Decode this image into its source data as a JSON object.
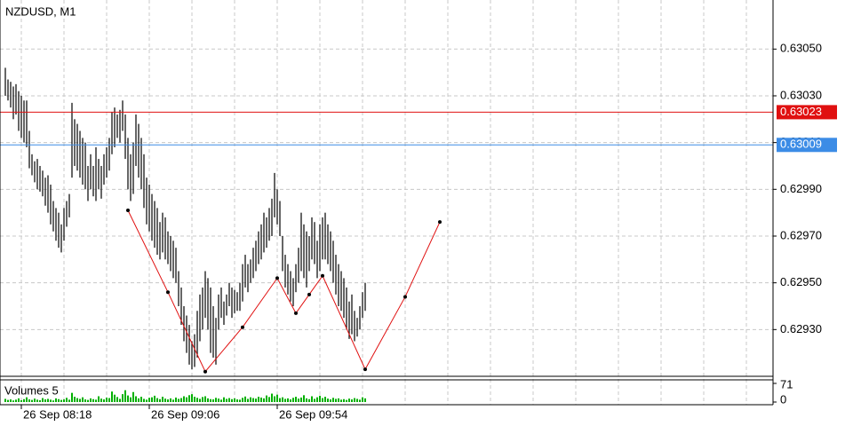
{
  "chart_data": {
    "type": "ohlc",
    "title": "NZDUSD, M1",
    "ylim": [
      0.6291,
      0.63071
    ],
    "yticks": [
      {
        "value": 0.6293,
        "label": "0.62930"
      },
      {
        "value": 0.6295,
        "label": "0.62950"
      },
      {
        "value": 0.6297,
        "label": "0.62970"
      },
      {
        "value": 0.6299,
        "label": "0.62990"
      },
      {
        "value": 0.6301,
        "label": "0.63010"
      },
      {
        "value": 0.6303,
        "label": "0.63030"
      },
      {
        "value": 0.6305,
        "label": "0.63050"
      }
    ],
    "xlim": [
      -2,
      288
    ],
    "xticks": [
      {
        "value": 6,
        "label": "26 Sep 08:18"
      },
      {
        "value": 54,
        "label": "26 Sep 09:06"
      },
      {
        "value": 102,
        "label": "26 Sep 09:54"
      }
    ],
    "xgrid": [
      6,
      22,
      38,
      54,
      70,
      86,
      102,
      118,
      134,
      150,
      166,
      182,
      198,
      214,
      230,
      246,
      262,
      278
    ],
    "grid": true,
    "color": "#000000",
    "high": [
      0.63042,
      0.63037,
      0.63036,
      0.63034,
      0.63035,
      0.63032,
      0.6303,
      0.63028,
      0.63028,
      0.63015,
      0.63005,
      0.63002,
      0.63003,
      0.63,
      0.62998,
      0.62995,
      0.62996,
      0.62992,
      0.62985,
      0.62982,
      0.6298,
      0.62975,
      0.62982,
      0.62985,
      0.62988,
      0.63027,
      0.6302,
      0.63018,
      0.63015,
      0.63012,
      0.6301,
      0.63,
      0.63005,
      0.63,
      0.63008,
      0.63003,
      0.63,
      0.63005,
      0.63008,
      0.63012,
      0.63023,
      0.63025,
      0.63022,
      0.63024,
      0.63028,
      0.63022,
      0.63012,
      0.63005,
      0.6301,
      0.63022,
      0.63018,
      0.63012,
      0.63005,
      0.62995,
      0.62992,
      0.62988,
      0.62985,
      0.62982,
      0.62976,
      0.6298,
      0.62978,
      0.62972,
      0.6297,
      0.62968,
      0.62965,
      0.62955,
      0.62948,
      0.6294,
      0.62936,
      0.62932,
      0.62925,
      0.62928,
      0.62938,
      0.62945,
      0.62948,
      0.62955,
      0.62952,
      0.62948,
      0.6294,
      0.62935,
      0.62945,
      0.62948,
      0.62942,
      0.62945,
      0.6295,
      0.62948,
      0.62947,
      0.62946,
      0.6295,
      0.62958,
      0.62962,
      0.62958,
      0.6296,
      0.62965,
      0.62968,
      0.62972,
      0.62975,
      0.6298,
      0.62978,
      0.62982,
      0.62986,
      0.62997,
      0.6299,
      0.62985,
      0.6297,
      0.62962,
      0.62958,
      0.62955,
      0.62952,
      0.62958,
      0.62965,
      0.6298,
      0.62975,
      0.62972,
      0.6297,
      0.62978,
      0.62976,
      0.62968,
      0.62975,
      0.62978,
      0.6298,
      0.62975,
      0.62972,
      0.62968,
      0.62962,
      0.62958,
      0.62955,
      0.62952,
      0.62948,
      0.62942,
      0.62945,
      0.62938,
      0.62935,
      0.6294,
      0.62946,
      0.6295
    ],
    "low": [
      0.6303,
      0.63028,
      0.63025,
      0.6302,
      0.63022,
      0.63015,
      0.63012,
      0.6301,
      0.63008,
      0.62999,
      0.62996,
      0.62993,
      0.6299,
      0.62989,
      0.62987,
      0.62983,
      0.6298,
      0.62975,
      0.62972,
      0.62968,
      0.62965,
      0.62963,
      0.62968,
      0.62974,
      0.62978,
      0.62995,
      0.63,
      0.62998,
      0.62995,
      0.62992,
      0.6299,
      0.62985,
      0.6299,
      0.62987,
      0.62985,
      0.6299,
      0.62986,
      0.62992,
      0.62995,
      0.62998,
      0.63005,
      0.63008,
      0.63012,
      0.6301,
      0.63015,
      0.63003,
      0.6299,
      0.62985,
      0.62988,
      0.63,
      0.62995,
      0.6299,
      0.62982,
      0.62975,
      0.62972,
      0.62968,
      0.62965,
      0.62962,
      0.6296,
      0.62963,
      0.6296,
      0.62958,
      0.62955,
      0.62952,
      0.6295,
      0.6294,
      0.62932,
      0.62925,
      0.6292,
      0.62915,
      0.62913,
      0.62914,
      0.62918,
      0.62925,
      0.6293,
      0.62935,
      0.6293,
      0.6292,
      0.62918,
      0.62915,
      0.6293,
      0.62935,
      0.62932,
      0.62936,
      0.6294,
      0.62935,
      0.62937,
      0.62938,
      0.62938,
      0.62942,
      0.62948,
      0.62946,
      0.6295,
      0.62952,
      0.62955,
      0.62958,
      0.6296,
      0.62963,
      0.62965,
      0.62968,
      0.6297,
      0.62978,
      0.62975,
      0.6297,
      0.62955,
      0.62948,
      0.62945,
      0.62942,
      0.6294,
      0.62946,
      0.6295,
      0.62955,
      0.62952,
      0.62948,
      0.62955,
      0.6296,
      0.62958,
      0.62952,
      0.62955,
      0.6296,
      0.6296,
      0.62958,
      0.62955,
      0.6295,
      0.62945,
      0.6294,
      0.62938,
      0.62935,
      0.6293,
      0.62926,
      0.62928,
      0.62925,
      0.62927,
      0.6293,
      0.62935,
      0.62938
    ],
    "hlines": [
      {
        "value": 0.63023,
        "color": "#e01010"
      },
      {
        "value": 0.63009,
        "color": "#3c8ce6"
      }
    ],
    "zigzag": {
      "color": "#e01010",
      "x": [
        46,
        61,
        75,
        89,
        102,
        109,
        114,
        119,
        135,
        150,
        163
      ],
      "y": [
        0.62981,
        0.62946,
        0.62912,
        0.62931,
        0.62952,
        0.62937,
        0.62945,
        0.62953,
        0.62913,
        0.62944,
        0.62976
      ]
    },
    "volume": {
      "title": "Volumes 5",
      "color": "#00b000",
      "ylim": [
        0,
        71
      ],
      "yticks": [
        0,
        71
      ],
      "values": [
        12,
        8,
        10,
        6,
        9,
        14,
        7,
        11,
        18,
        10,
        8,
        13,
        9,
        7,
        15,
        10,
        12,
        9,
        6,
        14,
        11,
        8,
        10,
        16,
        9,
        35,
        20,
        15,
        12,
        18,
        10,
        8,
        14,
        11,
        9,
        22,
        13,
        10,
        17,
        15,
        40,
        28,
        19,
        12,
        30,
        45,
        25,
        18,
        38,
        22,
        14,
        20,
        12,
        9,
        16,
        18,
        24,
        15,
        11,
        20,
        13,
        10,
        14,
        9,
        17,
        12,
        15,
        22,
        18,
        26,
        30,
        20,
        16,
        12,
        19,
        22,
        14,
        11,
        10,
        16,
        13,
        9,
        18,
        12,
        15,
        11,
        14,
        10,
        9,
        16,
        21,
        12,
        18,
        15,
        13,
        20,
        17,
        14,
        25,
        19,
        32,
        22,
        28,
        15,
        18,
        12,
        14,
        10,
        16,
        20,
        13,
        17,
        26,
        14,
        11,
        22,
        12,
        18,
        24,
        15,
        20,
        13,
        10,
        16,
        12,
        14,
        9,
        11,
        8,
        13,
        10,
        15,
        12,
        9,
        18,
        14
      ]
    }
  }
}
